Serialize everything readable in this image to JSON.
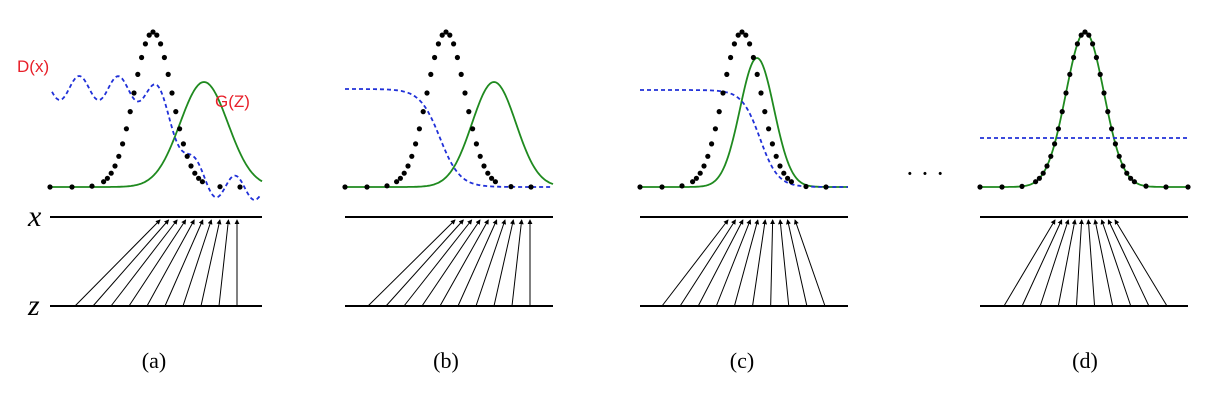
{
  "labels": {
    "discriminator": "D(x)",
    "generator": "G(Z)",
    "x_axis": "x",
    "z_axis": "z",
    "ellipsis": "· · ·"
  },
  "colors": {
    "generator_curve": "#1f8a1f",
    "discriminator_curve": "#2030d8",
    "data_points": "#000000",
    "annotation_text": "#e8202a"
  },
  "panels": [
    {
      "id": "a",
      "caption": "(a)"
    },
    {
      "id": "b",
      "caption": "(b)"
    },
    {
      "id": "c",
      "caption": "(c)"
    },
    {
      "id": "d",
      "caption": "(d)"
    }
  ]
}
